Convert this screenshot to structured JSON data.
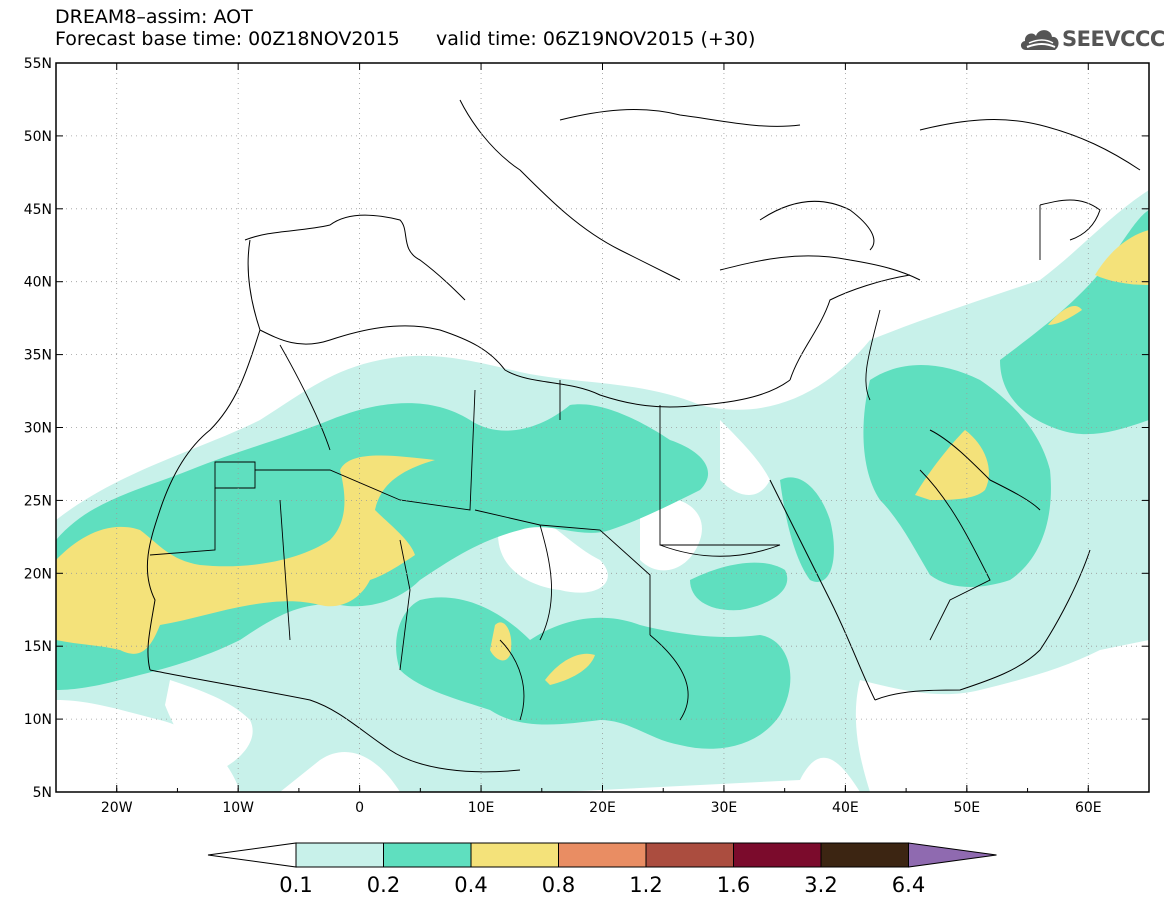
{
  "header": {
    "line1": "DREAM8–assim: AOT",
    "base_time": "Forecast base time: 00Z18NOV2015",
    "valid_time": "valid time: 06Z19NOV2015 (+30)"
  },
  "logo": {
    "name": "SEEVCCC",
    "icon": "cloud-icon"
  },
  "map": {
    "extent": {
      "lon": [
        -25,
        65
      ],
      "lat": [
        5,
        55
      ]
    },
    "lat_labels": [
      "5N",
      "10N",
      "15N",
      "20N",
      "25N",
      "30N",
      "35N",
      "40N",
      "45N",
      "50N",
      "55N"
    ],
    "lon_labels": [
      "20W",
      "10W",
      "0",
      "10E",
      "20E",
      "30E",
      "40E",
      "50E",
      "60E"
    ],
    "grid": "dotted"
  },
  "colorbar": {
    "labels": [
      "0.1",
      "0.2",
      "0.4",
      "0.8",
      "1.2",
      "1.6",
      "3.2",
      "6.4"
    ],
    "colors": [
      "#ffffff",
      "#c8f1ea",
      "#5fdfbf",
      "#f4e27a",
      "#e98d63",
      "#ab4d3f",
      "#7b0b2c",
      "#3c2512",
      "#8f6ab0"
    ]
  }
}
